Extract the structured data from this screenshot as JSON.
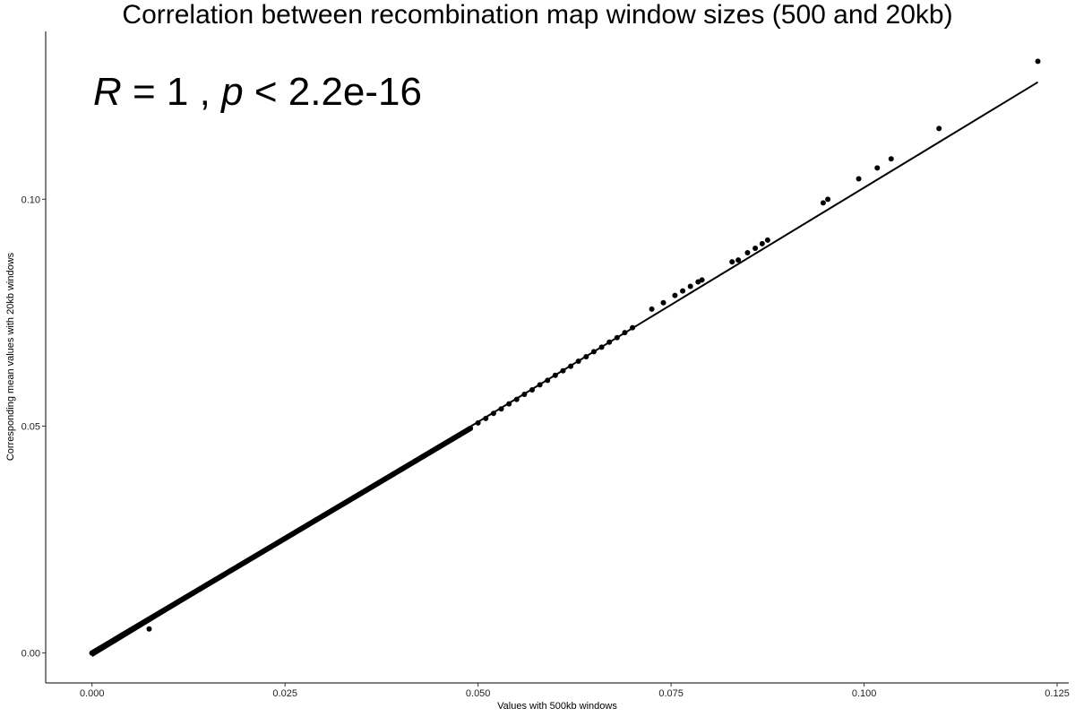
{
  "chart_data": {
    "type": "scatter",
    "title": "Correlation between recombination map window sizes (500 and 20kb)",
    "xlabel": "Values with 500kb windows",
    "ylabel": "Corresponding mean values with 20kb windows",
    "xlim": [
      -0.006,
      0.1265
    ],
    "ylim": [
      -0.0066,
      0.137
    ],
    "xticks": [
      0.0,
      0.025,
      0.05,
      0.075,
      0.1,
      0.125
    ],
    "xtick_labels": [
      "0.000",
      "0.025",
      "0.050",
      "0.075",
      "0.100",
      "0.125"
    ],
    "yticks": [
      0.0,
      0.05,
      0.1
    ],
    "ytick_labels": [
      "0.00",
      "0.05",
      "0.10"
    ],
    "grid": false,
    "legend": "none",
    "annotation": {
      "r_symbol": "R",
      "r_value": "= 1",
      "sep": ",",
      "p_symbol": "p",
      "p_value": "< 2.2e-16"
    },
    "regression_line": {
      "x": [
        0.0,
        0.1225
      ],
      "y": [
        -0.0007,
        0.1258
      ]
    },
    "series": [
      {
        "x": [
          0.0,
          0.001,
          0.002,
          0.003,
          0.004,
          0.005,
          0.006,
          0.007,
          0.008,
          0.009,
          0.01,
          0.011,
          0.012,
          0.013,
          0.014,
          0.015,
          0.016,
          0.017,
          0.018,
          0.019,
          0.02,
          0.021,
          0.022,
          0.023,
          0.024,
          0.025,
          0.026,
          0.027,
          0.028,
          0.029,
          0.03,
          0.031,
          0.032,
          0.033,
          0.034,
          0.035,
          0.036,
          0.037,
          0.038,
          0.039,
          0.04,
          0.041,
          0.042,
          0.043,
          0.044,
          0.045,
          0.046,
          0.047,
          0.048,
          0.049,
          0.05,
          0.051,
          0.052,
          0.053,
          0.054,
          0.055,
          0.056,
          0.057,
          0.058,
          0.059,
          0.06,
          0.061,
          0.062,
          0.063,
          0.064,
          0.065,
          0.066,
          0.067,
          0.068,
          0.069,
          0.07,
          0.0725,
          0.074,
          0.0755,
          0.0765,
          0.0775,
          0.0785,
          0.079,
          0.0829,
          0.0837,
          0.0849,
          0.0859,
          0.0868,
          0.0875,
          0.0947,
          0.0953,
          0.0993,
          0.1017,
          0.1035,
          0.1097,
          0.1225,
          0.0074
        ],
        "y": [
          0.0,
          0.00101,
          0.00202,
          0.00303,
          0.00404,
          0.00505,
          0.00606,
          0.00707,
          0.00808,
          0.00909,
          0.0101,
          0.01111,
          0.01212,
          0.01313,
          0.01414,
          0.01515,
          0.01616,
          0.01717,
          0.01818,
          0.01919,
          0.0202,
          0.02121,
          0.02222,
          0.02323,
          0.02424,
          0.02525,
          0.02626,
          0.02727,
          0.02828,
          0.02929,
          0.0303,
          0.03131,
          0.03232,
          0.03333,
          0.03434,
          0.03535,
          0.03636,
          0.03737,
          0.03838,
          0.03939,
          0.0404,
          0.04141,
          0.04242,
          0.04343,
          0.04444,
          0.04545,
          0.04646,
          0.04747,
          0.04848,
          0.04949,
          0.0507,
          0.0517,
          0.0528,
          0.0538,
          0.0549,
          0.0559,
          0.057,
          0.058,
          0.0591,
          0.0601,
          0.0612,
          0.0622,
          0.0632,
          0.0643,
          0.0653,
          0.0664,
          0.0674,
          0.0685,
          0.0695,
          0.0706,
          0.0717,
          0.0758,
          0.0772,
          0.0788,
          0.0798,
          0.0808,
          0.0818,
          0.0822,
          0.0862,
          0.0866,
          0.0882,
          0.0892,
          0.0902,
          0.091,
          0.0992,
          0.1,
          0.1045,
          0.1069,
          0.1089,
          0.1156,
          0.1304,
          0.0053
        ]
      }
    ]
  }
}
